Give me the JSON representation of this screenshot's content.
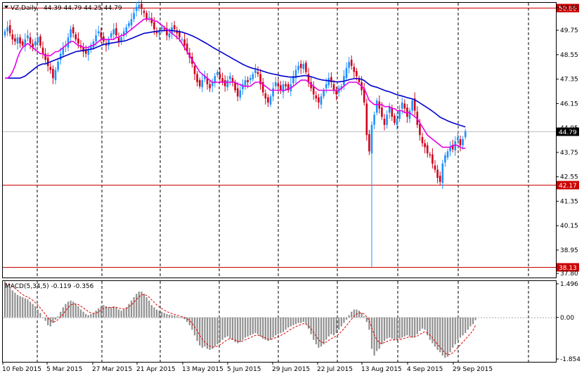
{
  "chart_data": {
    "type": "candlestick",
    "header": {
      "symbol": "VZ,Daily",
      "ohlc": "44.39 44.79 44.25 44.79"
    },
    "price_axis": {
      "ticks": [
        "50.86",
        "49.75",
        "48.55",
        "47.35",
        "46.15",
        "44.95",
        "43.75",
        "42.55",
        "41.35",
        "40.15",
        "38.95",
        "37.80"
      ],
      "tick_values": [
        50.86,
        49.75,
        48.55,
        47.35,
        46.15,
        44.95,
        43.75,
        42.55,
        41.35,
        40.15,
        38.95,
        37.8
      ],
      "range": [
        37.6,
        51.1
      ]
    },
    "horizontal_levels": [
      {
        "label": "50.86",
        "value": 50.86,
        "color": "#cc0000"
      },
      {
        "label": "42.17",
        "value": 42.17,
        "color": "#cc0000"
      },
      {
        "label": "38.13",
        "value": 38.13,
        "color": "#cc0000"
      }
    ],
    "current_price": {
      "label": "44.79",
      "value": 44.79
    },
    "date_axis": {
      "labels": [
        "10 Feb 2015",
        "5 Mar 2015",
        "27 Mar 2015",
        "21 Apr 2015",
        "13 May 2015",
        "5 Jun 2015",
        "29 Jun 2015",
        "22 Jul 2015",
        "13 Aug 2015",
        "4 Sep 2015",
        "29 Sep 2015"
      ]
    },
    "closes": [
      49.7,
      49.9,
      49.6,
      49.3,
      49.2,
      49.4,
      49.1,
      49.0,
      49.3,
      49.5,
      49.1,
      48.9,
      49.2,
      49.4,
      49.0,
      48.6,
      48.3,
      48.0,
      47.8,
      47.4,
      47.8,
      48.2,
      48.6,
      48.9,
      49.0,
      49.4,
      49.8,
      49.6,
      49.3,
      49.1,
      48.9,
      48.7,
      48.6,
      48.8,
      49.0,
      49.2,
      49.5,
      49.7,
      49.4,
      49.2,
      49.0,
      49.3,
      49.6,
      49.8,
      49.5,
      49.2,
      49.4,
      49.7,
      49.9,
      50.1,
      50.3,
      50.6,
      50.9,
      51.0,
      50.8,
      50.6,
      50.3,
      50.4,
      50.1,
      49.8,
      49.6,
      49.7,
      49.9,
      49.8,
      49.5,
      49.6,
      49.9,
      49.8,
      49.6,
      49.4,
      49.3,
      49.0,
      48.7,
      48.4,
      48.1,
      47.6,
      47.2,
      47.0,
      47.3,
      47.5,
      47.1,
      46.9,
      47.2,
      47.5,
      47.7,
      47.4,
      47.2,
      47.0,
      47.3,
      47.5,
      47.2,
      46.8,
      46.5,
      46.8,
      47.1,
      47.3,
      47.2,
      47.4,
      47.6,
      47.8,
      47.6,
      47.1,
      46.7,
      46.4,
      46.2,
      46.5,
      46.9,
      47.2,
      47.0,
      46.8,
      47.1,
      47.0,
      46.8,
      47.1,
      47.5,
      47.8,
      48.0,
      47.9,
      48.1,
      47.7,
      47.2,
      46.9,
      46.6,
      46.4,
      46.2,
      46.5,
      46.8,
      47.1,
      47.4,
      47.2,
      46.8,
      46.6,
      46.9,
      47.0,
      47.5,
      47.9,
      48.2,
      48.0,
      47.7,
      47.5,
      47.2,
      46.8,
      46.2,
      44.6,
      43.8,
      45.1,
      45.6,
      46.3,
      45.9,
      45.5,
      45.1,
      45.6,
      46.0,
      45.5,
      45.2,
      45.4,
      45.8,
      46.2,
      45.9,
      45.5,
      45.8,
      46.3,
      45.8,
      45.1,
      44.6,
      44.2,
      44.0,
      43.7,
      43.6,
      43.2,
      42.9,
      42.5,
      42.3,
      43.2,
      43.6,
      43.8,
      44.0,
      43.9,
      44.3,
      44.5,
      44.1,
      44.4,
      44.79
    ],
    "ma_fast": [
      47.4,
      47.4,
      47.5,
      47.7,
      48.0,
      48.4,
      48.7,
      48.9,
      49.0,
      49.1,
      49.0,
      48.9,
      48.8,
      48.7,
      48.6,
      48.6,
      48.5,
      48.5,
      48.5,
      48.6,
      48.7,
      48.7,
      48.8,
      48.9,
      49.0,
      49.1,
      49.2,
      49.2,
      49.1,
      49.0,
      49.0,
      48.9,
      48.9,
      48.9,
      49.0,
      49.0,
      49.1,
      49.2,
      49.3,
      49.3,
      49.3,
      49.3,
      49.3,
      49.3,
      49.4,
      49.4,
      49.5,
      49.5,
      49.6,
      49.7,
      49.8,
      49.9,
      50.0,
      50.1,
      50.2,
      50.3,
      50.3,
      50.3,
      50.3,
      50.2,
      50.2,
      50.1,
      50.0,
      49.9,
      49.8,
      49.7,
      49.6,
      49.5,
      49.4,
      49.3,
      49.1,
      48.9,
      48.7,
      48.5,
      48.3,
      48.1,
      47.9,
      47.7,
      47.6,
      47.5,
      47.4,
      47.3,
      47.2,
      47.2,
      47.2,
      47.2,
      47.2,
      47.2,
      47.2,
      47.2,
      47.2,
      47.2,
      47.1,
      47.1,
      47.0,
      47.0,
      47.0,
      47.0,
      47.1,
      47.2,
      47.2,
      47.2,
      47.1,
      47.0,
      46.9,
      46.8,
      46.8,
      46.8,
      46.8,
      46.8,
      46.8,
      46.8,
      46.9,
      46.9,
      47.0,
      47.1,
      47.2,
      47.3,
      47.3,
      47.3,
      47.2,
      47.1,
      47.0,
      46.9,
      46.8,
      46.8,
      46.8,
      46.8,
      46.8,
      46.8,
      46.8,
      46.8,
      46.8,
      46.9,
      47.0,
      47.1,
      47.2,
      47.2,
      47.2,
      47.2,
      47.1,
      47.0,
      46.9,
      46.6,
      46.3,
      46.2,
      46.1,
      46.1,
      46.1,
      46.1,
      46.0,
      46.0,
      46.0,
      45.9,
      45.9,
      45.8,
      45.8,
      45.8,
      45.7,
      45.7,
      45.7,
      45.6,
      45.5,
      45.4,
      45.2,
      45.0,
      44.8,
      44.6,
      44.5,
      44.4,
      44.3,
      44.2,
      44.1,
      44.0,
      44.0,
      44.0,
      44.0,
      44.1,
      44.1,
      44.1,
      44.0,
      43.95,
      43.95
    ],
    "ma_slow": [
      47.4,
      47.4,
      47.4,
      47.4,
      47.4,
      47.4,
      47.4,
      47.45,
      47.5,
      47.6,
      47.7,
      47.8,
      47.9,
      48.0,
      48.05,
      48.1,
      48.1,
      48.15,
      48.2,
      48.25,
      48.3,
      48.35,
      48.4,
      48.45,
      48.5,
      48.55,
      48.6,
      48.65,
      48.7,
      48.72,
      48.74,
      48.76,
      48.78,
      48.8,
      48.82,
      48.85,
      48.9,
      48.95,
      49.0,
      49.05,
      49.08,
      49.1,
      49.12,
      49.14,
      49.16,
      49.18,
      49.2,
      49.22,
      49.25,
      49.3,
      49.35,
      49.4,
      49.45,
      49.5,
      49.55,
      49.6,
      49.62,
      49.64,
      49.66,
      49.68,
      49.7,
      49.72,
      49.73,
      49.74,
      49.75,
      49.75,
      49.74,
      49.72,
      49.7,
      49.68,
      49.66,
      49.62,
      49.58,
      49.53,
      49.48,
      49.42,
      49.36,
      49.29,
      49.22,
      49.15,
      49.08,
      49.0,
      48.92,
      48.85,
      48.78,
      48.71,
      48.64,
      48.57,
      48.5,
      48.43,
      48.36,
      48.29,
      48.22,
      48.15,
      48.08,
      48.02,
      47.97,
      47.92,
      47.88,
      47.85,
      47.82,
      47.78,
      47.74,
      47.7,
      47.66,
      47.63,
      47.6,
      47.58,
      47.55,
      47.52,
      47.5,
      47.48,
      47.46,
      47.45,
      47.45,
      47.46,
      47.48,
      47.5,
      47.52,
      47.52,
      47.5,
      47.47,
      47.43,
      47.39,
      47.35,
      47.32,
      47.3,
      47.28,
      47.27,
      47.25,
      47.23,
      47.22,
      47.22,
      47.23,
      47.25,
      47.28,
      47.32,
      47.35,
      47.37,
      47.38,
      47.37,
      47.34,
      47.28,
      47.18,
      47.08,
      47.02,
      46.98,
      46.95,
      46.9,
      46.85,
      46.8,
      46.76,
      46.73,
      46.68,
      46.63,
      46.58,
      46.55,
      46.52,
      46.48,
      46.44,
      46.41,
      46.38,
      46.33,
      46.26,
      46.18,
      46.1,
      46.02,
      45.94,
      45.86,
      45.77,
      45.68,
      45.58,
      45.48,
      45.42,
      45.36,
      45.3,
      45.25,
      45.2,
      45.16,
      45.12,
      45.08,
      45.04,
      45.0
    ],
    "outlier": {
      "index": 145,
      "low": 38.13
    },
    "macd": {
      "label": "MACD(5,34,5) -0.119 -0.356",
      "ticks": [
        "1.496",
        "0.00",
        "-1.854"
      ],
      "tick_values": [
        1.496,
        0.0,
        -1.854
      ],
      "range": [
        -1.98,
        1.62
      ],
      "histogram": [
        1.6,
        1.45,
        1.3,
        1.2,
        1.1,
        1.0,
        0.95,
        0.9,
        0.85,
        0.8,
        0.7,
        0.6,
        0.5,
        0.35,
        0.2,
        0.0,
        -0.15,
        -0.35,
        -0.4,
        -0.25,
        -0.1,
        0.05,
        0.25,
        0.45,
        0.6,
        0.7,
        0.75,
        0.7,
        0.6,
        0.5,
        0.35,
        0.25,
        0.15,
        0.1,
        0.15,
        0.2,
        0.3,
        0.4,
        0.5,
        0.55,
        0.5,
        0.45,
        0.45,
        0.5,
        0.45,
        0.35,
        0.3,
        0.35,
        0.45,
        0.6,
        0.75,
        0.9,
        1.05,
        1.15,
        1.15,
        1.05,
        0.9,
        0.75,
        0.55,
        0.45,
        0.35,
        0.3,
        0.25,
        0.2,
        0.15,
        0.12,
        0.1,
        0.08,
        0.05,
        0.02,
        0.0,
        -0.08,
        -0.2,
        -0.35,
        -0.55,
        -0.8,
        -1.05,
        -1.25,
        -1.35,
        -1.3,
        -1.4,
        -1.45,
        -1.4,
        -1.3,
        -1.2,
        -1.1,
        -1.0,
        -0.9,
        -0.85,
        -0.95,
        -1.0,
        -1.1,
        -1.15,
        -1.1,
        -1.0,
        -0.9,
        -0.85,
        -0.8,
        -0.75,
        -0.7,
        -0.75,
        -0.85,
        -0.95,
        -1.0,
        -1.05,
        -1.0,
        -0.9,
        -0.8,
        -0.75,
        -0.7,
        -0.65,
        -0.55,
        -0.45,
        -0.4,
        -0.35,
        -0.3,
        -0.25,
        -0.25,
        -0.2,
        -0.3,
        -0.5,
        -0.75,
        -1.0,
        -1.2,
        -1.35,
        -1.3,
        -1.2,
        -1.0,
        -0.85,
        -0.75,
        -0.8,
        -0.7,
        -0.55,
        -0.4,
        -0.25,
        -0.1,
        0.1,
        0.25,
        0.35,
        0.35,
        0.3,
        0.2,
        0.05,
        -0.2,
        -0.55,
        -1.4,
        -1.7,
        -1.5,
        -1.4,
        -1.2,
        -1.05,
        -0.95,
        -0.9,
        -0.95,
        -1.0,
        -1.0,
        -0.95,
        -0.9,
        -0.85,
        -0.8,
        -0.85,
        -0.9,
        -0.85,
        -0.75,
        -0.6,
        -0.5,
        -0.55,
        -0.8,
        -1.0,
        -1.15,
        -1.3,
        -1.45,
        -1.55,
        -1.7,
        -1.8,
        -1.75,
        -1.55,
        -1.35,
        -1.2,
        -1.0,
        -0.9,
        -0.8,
        -0.7,
        -0.55,
        -0.4,
        -0.3,
        -0.119
      ],
      "signal": [
        1.5,
        1.5,
        1.45,
        1.38,
        1.3,
        1.2,
        1.1,
        1.02,
        0.95,
        0.9,
        0.84,
        0.76,
        0.66,
        0.55,
        0.42,
        0.28,
        0.14,
        -0.02,
        -0.14,
        -0.2,
        -0.18,
        -0.1,
        0.02,
        0.15,
        0.3,
        0.44,
        0.55,
        0.6,
        0.6,
        0.57,
        0.5,
        0.42,
        0.34,
        0.26,
        0.2,
        0.18,
        0.2,
        0.25,
        0.32,
        0.4,
        0.44,
        0.45,
        0.44,
        0.45,
        0.45,
        0.42,
        0.38,
        0.37,
        0.4,
        0.47,
        0.56,
        0.67,
        0.8,
        0.92,
        1.0,
        1.02,
        0.98,
        0.9,
        0.78,
        0.67,
        0.56,
        0.47,
        0.39,
        0.32,
        0.26,
        0.21,
        0.17,
        0.13,
        0.1,
        0.07,
        0.04,
        0.0,
        -0.06,
        -0.14,
        -0.26,
        -0.42,
        -0.6,
        -0.8,
        -0.98,
        -1.1,
        -1.2,
        -1.28,
        -1.32,
        -1.32,
        -1.28,
        -1.22,
        -1.15,
        -1.06,
        -0.98,
        -0.96,
        -0.97,
        -1.01,
        -1.06,
        -1.08,
        -1.05,
        -1.0,
        -0.95,
        -0.9,
        -0.85,
        -0.8,
        -0.79,
        -0.82,
        -0.87,
        -0.92,
        -0.97,
        -0.98,
        -0.95,
        -0.9,
        -0.85,
        -0.8,
        -0.75,
        -0.68,
        -0.6,
        -0.53,
        -0.47,
        -0.41,
        -0.36,
        -0.32,
        -0.28,
        -0.3,
        -0.38,
        -0.5,
        -0.67,
        -0.84,
        -1.0,
        -1.1,
        -1.13,
        -1.1,
        -1.02,
        -0.94,
        -0.89,
        -0.83,
        -0.74,
        -0.63,
        -0.5,
        -0.37,
        -0.22,
        -0.08,
        0.05,
        0.15,
        0.2,
        0.2,
        0.15,
        0.03,
        -0.15,
        -0.45,
        -0.78,
        -1.0,
        -1.14,
        -1.16,
        -1.12,
        -1.07,
        -1.02,
        -1.0,
        -1.0,
        -1.0,
        -0.99,
        -0.96,
        -0.93,
        -0.89,
        -0.87,
        -0.88,
        -0.87,
        -0.83,
        -0.76,
        -0.68,
        -0.64,
        -0.69,
        -0.79,
        -0.92,
        -1.06,
        -1.2,
        -1.33,
        -1.46,
        -1.58,
        -1.66,
        -1.65,
        -1.57,
        -1.47,
        -1.35,
        -1.23,
        -1.1,
        -0.98,
        -0.85,
        -0.72,
        -0.58,
        -0.356
      ]
    }
  }
}
